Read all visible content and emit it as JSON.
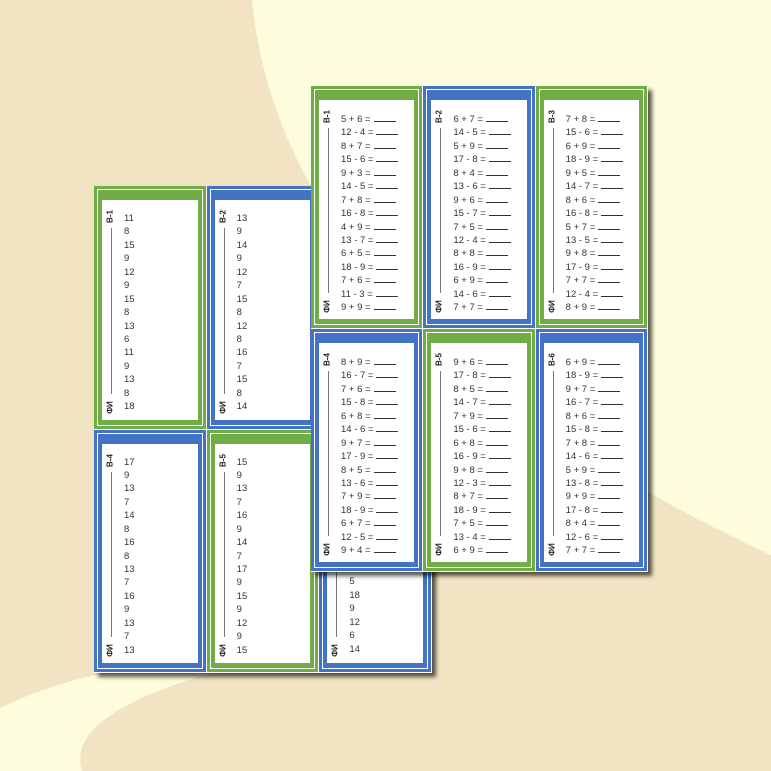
{
  "colors": {
    "green": "#70ad47",
    "blue": "#4472c4",
    "background_light": "#fdfcdc",
    "background_beige": "#f2e4c3"
  },
  "name_label": "ФИ",
  "back_sheet": {
    "cards": [
      {
        "variant": "В-1",
        "color": "green",
        "items": [
          "11",
          "8",
          "15",
          "9",
          "12",
          "9",
          "15",
          "8",
          "13",
          "6",
          "11",
          "9",
          "13",
          "8",
          "18"
        ]
      },
      {
        "variant": "В-2",
        "color": "blue",
        "items": [
          "13",
          "9",
          "14",
          "9",
          "12",
          "7",
          "15",
          "8",
          "12",
          "8",
          "16",
          "7",
          "15",
          "8",
          "14"
        ]
      },
      {
        "variant": "",
        "color": "green",
        "items": []
      },
      {
        "variant": "В-4",
        "color": "blue",
        "items": [
          "17",
          "9",
          "13",
          "7",
          "14",
          "8",
          "16",
          "8",
          "13",
          "7",
          "16",
          "9",
          "13",
          "7",
          "13"
        ]
      },
      {
        "variant": "В-5",
        "color": "green",
        "items": [
          "15",
          "9",
          "13",
          "7",
          "16",
          "9",
          "14",
          "7",
          "17",
          "9",
          "15",
          "9",
          "12",
          "9",
          "15"
        ]
      },
      {
        "variant": "",
        "color": "blue",
        "align_bottom": true,
        "items": [
          "5",
          "18",
          "9",
          "12",
          "6",
          "14"
        ]
      }
    ]
  },
  "front_sheet": {
    "cards": [
      {
        "variant": "В-1",
        "color": "green",
        "items": [
          "5 + 6 =",
          "12 - 4 =",
          "8 + 7 =",
          "15 - 6 =",
          "9 + 3 =",
          "14 - 5 =",
          "7 + 8 =",
          "16 - 8 =",
          "4 + 9 =",
          "13 - 7 =",
          "6 + 5 =",
          "18 - 9 =",
          "7 + 6 =",
          "11 - 3 =",
          "9 + 9 ="
        ]
      },
      {
        "variant": "В-2",
        "color": "blue",
        "items": [
          "6 + 7 =",
          "14 - 5 =",
          "5 + 9 =",
          "17 - 8 =",
          "8 + 4 =",
          "13 - 6 =",
          "9 + 6 =",
          "15 - 7 =",
          "7 + 5 =",
          "12 - 4 =",
          "8 + 8 =",
          "16 - 9 =",
          "6 + 9 =",
          "14 - 6 =",
          "7 + 7 ="
        ]
      },
      {
        "variant": "В-3",
        "color": "green",
        "items": [
          "7 + 8 =",
          "15 - 6 =",
          "6 + 9 =",
          "18 - 9 =",
          "9 + 5 =",
          "14 - 7 =",
          "8 + 6 =",
          "16 - 8 =",
          "5 + 7 =",
          "13 - 5 =",
          "9 + 8 =",
          "17 - 9 =",
          "7 + 7 =",
          "12 - 4 =",
          "8 + 9 ="
        ]
      },
      {
        "variant": "В-4",
        "color": "blue",
        "items": [
          "8 + 9 =",
          "16 - 7 =",
          "7 + 6 =",
          "15 - 8 =",
          "6 + 8 =",
          "14 - 6 =",
          "9 + 7 =",
          "17 - 9 =",
          "8 + 5 =",
          "13 - 6 =",
          "7 + 9 =",
          "18 - 9 =",
          "6 + 7 =",
          "12 - 5 =",
          "9 + 4 ="
        ]
      },
      {
        "variant": "В-5",
        "color": "green",
        "items": [
          "9 + 6 =",
          "17 - 8 =",
          "8 + 5 =",
          "14 - 7 =",
          "7 + 9 =",
          "15 - 6 =",
          "6 + 8 =",
          "16 - 9 =",
          "9 + 8 =",
          "12 - 3 =",
          "8 + 7 =",
          "18 - 9 =",
          "7 + 5 =",
          "13 - 4 =",
          "6 + 9 ="
        ]
      },
      {
        "variant": "В-6",
        "color": "blue",
        "items": [
          "6 + 9 =",
          "18 - 9 =",
          "9 + 7 =",
          "16 - 7 =",
          "8 + 6 =",
          "15 - 8 =",
          "7 + 8 =",
          "14 - 6 =",
          "5 + 9 =",
          "13 - 8 =",
          "9 + 9 =",
          "17 - 8 =",
          "8 + 4 =",
          "12 - 6 =",
          "7 + 7 ="
        ]
      }
    ]
  }
}
